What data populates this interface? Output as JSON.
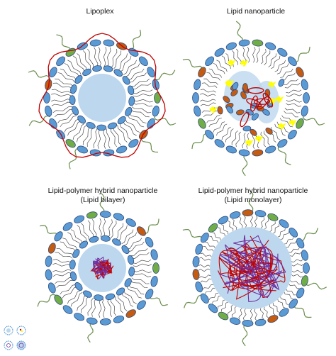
{
  "captions": {
    "lipoplex": "Lipoplex",
    "lipid_nanoparticle": "Lipid nanoparticle",
    "hybrid_bilayer_line1": "Lipid-polymer hybrid nanoparticle",
    "hybrid_bilayer_line2": "(Lipid bilayer)",
    "hybrid_monolayer_line1": "Lipid-polymer hybrid nanoparticle",
    "hybrid_monolayer_line2": "(Lipid monolayer)"
  },
  "colors": {
    "head_blue": "#5b9bd5",
    "head_green": "#70ad47",
    "head_orange": "#c55a11",
    "outline": "#2f4b7c",
    "core_blue": "#bdd7ee",
    "nucleic_red": "#c00000",
    "nucleic_purple": "#7030a0",
    "helper_yellow": "#ffff00",
    "peg_green": "#6b8e4e"
  },
  "icons": [
    "lipoplex-thumbnail-icon",
    "lnp-thumbnail-icon",
    "hybrid-bilayer-thumbnail-icon",
    "hybrid-monolayer-thumbnail-icon"
  ]
}
